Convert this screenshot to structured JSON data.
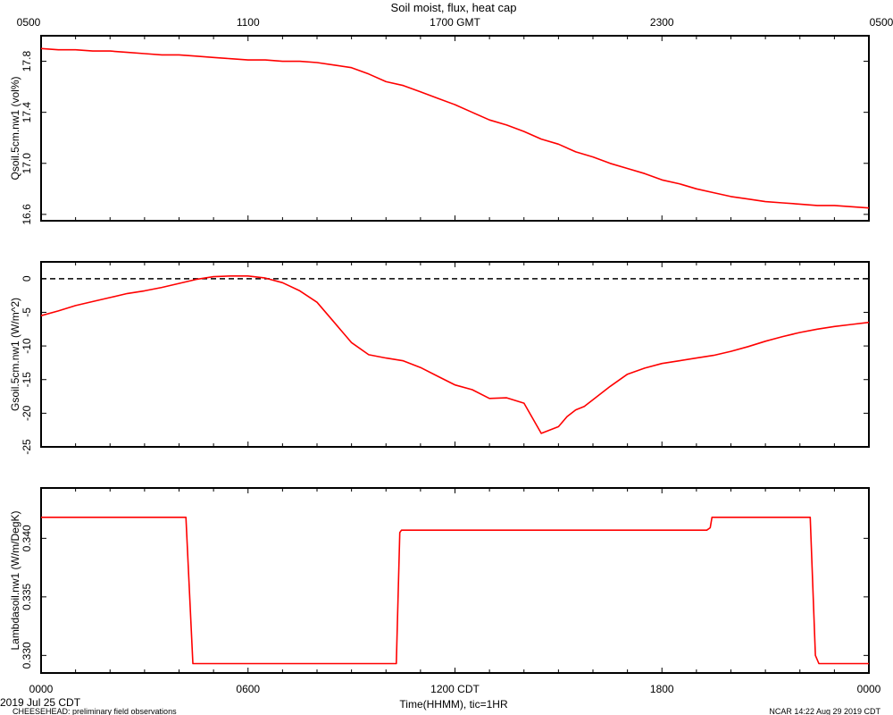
{
  "figure": {
    "title": "Soil moist, flux, heat cap",
    "top_axis_ticks": [
      "0500",
      "1100",
      "1700 GMT",
      "2300",
      "0500"
    ],
    "bottom_axis_ticks": [
      "0000",
      "0600",
      "1200 CDT",
      "1800",
      "0000"
    ],
    "xlabel": "Time(HHMM), tic=1HR",
    "date_label": "2019 Jul 25 CDT",
    "footer_left": "CHEESEHEAD: preliminary field observations",
    "footer_right": "NCAR 14:22 Aug 29 2019 CDT",
    "line_color": "#ff0000"
  },
  "chart_data": [
    {
      "type": "line",
      "ylabel": "Qsoil.5cm.nw1 (vol%)",
      "ylim": [
        16.55,
        18.0
      ],
      "yticks": [
        16.6,
        17.0,
        17.4,
        17.8
      ],
      "ytick_labels": [
        "16.6",
        "17.0",
        "17.4",
        "17.8"
      ],
      "xlim": [
        0,
        24
      ],
      "series": [
        {
          "x": [
            0,
            0.5,
            1,
            1.5,
            2,
            2.5,
            3,
            3.5,
            4,
            4.5,
            5,
            5.5,
            6,
            6.5,
            7,
            7.5,
            8,
            8.5,
            9,
            9.5,
            10,
            10.5,
            11,
            11.5,
            12,
            12.5,
            13,
            13.5,
            14,
            14.5,
            15,
            15.5,
            16,
            16.5,
            17,
            17.5,
            18,
            18.5,
            19,
            19.5,
            20,
            20.5,
            21,
            21.5,
            22,
            22.5,
            23,
            23.5,
            24
          ],
          "y": [
            17.9,
            17.89,
            17.89,
            17.88,
            17.88,
            17.87,
            17.86,
            17.85,
            17.85,
            17.84,
            17.83,
            17.82,
            17.81,
            17.81,
            17.8,
            17.8,
            17.79,
            17.77,
            17.75,
            17.7,
            17.64,
            17.61,
            17.56,
            17.51,
            17.46,
            17.4,
            17.34,
            17.3,
            17.25,
            17.19,
            17.15,
            17.09,
            17.05,
            17.0,
            16.96,
            16.92,
            16.87,
            16.84,
            16.8,
            16.77,
            16.74,
            16.72,
            16.7,
            16.69,
            16.68,
            16.67,
            16.67,
            16.66,
            16.65
          ]
        }
      ]
    },
    {
      "type": "line",
      "ylabel": "Gsoil.5cm.nw1 (W/m^2)",
      "ylim": [
        -25,
        2.5
      ],
      "yticks": [
        0,
        -5,
        -10,
        -15,
        -20,
        -25
      ],
      "ytick_labels": [
        "0",
        "-5",
        "-10",
        "-15",
        "-20",
        "-25"
      ],
      "xlim": [
        0,
        24
      ],
      "zero_line": true,
      "series": [
        {
          "x": [
            0,
            0.5,
            1,
            1.5,
            2,
            2.5,
            3,
            3.5,
            4,
            4.5,
            5,
            5.5,
            6,
            6.5,
            7,
            7.5,
            8,
            8.5,
            9,
            9.5,
            10,
            10.5,
            11,
            11.5,
            12,
            12.5,
            13,
            13.5,
            14,
            14.5,
            15,
            15.25,
            15.5,
            15.75,
            16,
            16.5,
            17,
            17.5,
            18,
            18.5,
            19,
            19.5,
            20,
            20.5,
            21,
            21.5,
            22,
            22.5,
            23,
            23.5,
            24
          ],
          "y": [
            -5.5,
            -4.8,
            -4.0,
            -3.4,
            -2.8,
            -2.2,
            -1.8,
            -1.3,
            -0.7,
            -0.1,
            0.3,
            0.4,
            0.4,
            0.1,
            -0.6,
            -1.8,
            -3.5,
            -6.5,
            -9.5,
            -11.3,
            -11.8,
            -12.2,
            -13.2,
            -14.5,
            -15.8,
            -16.5,
            -17.8,
            -17.7,
            -18.5,
            -23.0,
            -22.0,
            -20.5,
            -19.5,
            -19.0,
            -18.0,
            -16.0,
            -14.2,
            -13.3,
            -12.6,
            -12.2,
            -11.8,
            -11.4,
            -10.8,
            -10.1,
            -9.3,
            -8.6,
            -8.0,
            -7.5,
            -7.1,
            -6.8,
            -6.5
          ]
        }
      ]
    },
    {
      "type": "line",
      "ylabel": "Lambdasoil.nw1 (W/m/DegK)",
      "ylim": [
        0.3285,
        0.3443
      ],
      "yticks": [
        0.33,
        0.335,
        0.34
      ],
      "ytick_labels": [
        "0.330",
        "0.335",
        "0.340"
      ],
      "xlim": [
        0,
        24
      ],
      "series": [
        {
          "x": [
            0,
            4.2,
            4.4,
            10.3,
            10.4,
            10.45,
            19.3,
            19.4,
            19.45,
            22.3,
            22.45,
            22.55,
            24
          ],
          "y": [
            0.3418,
            0.3418,
            0.3293,
            0.3293,
            0.3405,
            0.3407,
            0.3407,
            0.3409,
            0.3418,
            0.3418,
            0.33,
            0.3293,
            0.3293
          ]
        }
      ]
    }
  ]
}
